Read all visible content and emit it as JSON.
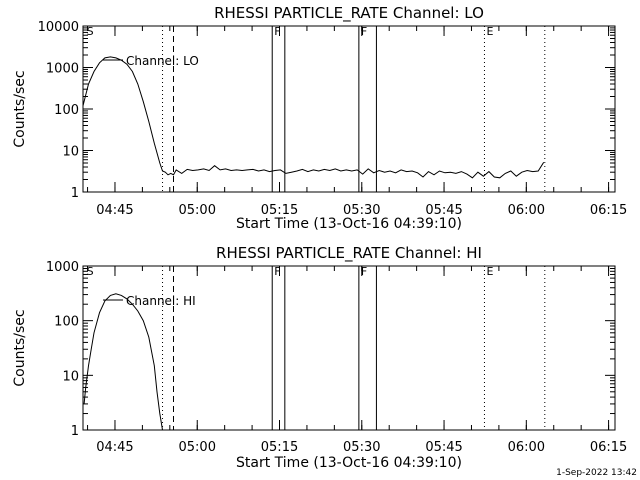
{
  "footer": {
    "timestamp": "1-Sep-2022 13:42"
  },
  "chart_data": [
    {
      "type": "line",
      "title": "RHESSI PARTICLE_RATE Channel: LO",
      "xlabel": "Start Time (13-Oct-16 04:39:10)",
      "ylabel": "Counts/sec",
      "x_unit": "minutes after 04:39:10",
      "xlim": [
        0,
        97
      ],
      "ylim": [
        1,
        10000
      ],
      "yscale": "log",
      "x_tick_labels": [
        "04:45",
        "05:00",
        "05:15",
        "05:30",
        "05:45",
        "06:00",
        "06:15"
      ],
      "y_tick_labels": [
        "1",
        "10",
        "100",
        "1000",
        "10000"
      ],
      "legend_label": "Channel: LO",
      "flags": [
        {
          "label": "S",
          "x": 0.3,
          "style": "none"
        },
        {
          "label": "",
          "x": 14.5,
          "style": "dotted"
        },
        {
          "label": "",
          "x": 16.5,
          "style": "dashed"
        },
        {
          "label": "F",
          "x": 34.5,
          "style": "solid"
        },
        {
          "label": "",
          "x": 36.8,
          "style": "solid"
        },
        {
          "label": "F",
          "x": 50.3,
          "style": "solid"
        },
        {
          "label": "",
          "x": 53.5,
          "style": "solid"
        },
        {
          "label": "E",
          "x": 73.2,
          "style": "dotted"
        },
        {
          "label": "",
          "x": 84.2,
          "style": "dotted"
        }
      ],
      "series": [
        {
          "x": [
            0,
            1,
            2,
            3,
            4,
            5,
            6,
            7,
            8,
            9,
            10,
            11,
            12,
            13,
            14,
            14.5,
            15,
            15.5,
            16,
            16.5,
            17,
            18,
            19,
            20,
            21,
            22,
            23,
            24,
            25,
            26,
            27,
            28,
            29,
            30,
            31,
            32,
            33,
            34,
            35,
            36,
            37,
            38,
            39,
            40,
            41,
            42,
            43,
            44,
            45,
            46,
            47,
            48,
            49,
            50,
            51,
            52,
            53,
            54,
            55,
            56,
            57,
            58,
            59,
            60,
            61,
            62,
            63,
            64,
            65,
            66,
            67,
            68,
            69,
            70,
            71,
            72,
            73,
            74,
            75,
            76,
            77,
            78,
            79,
            80,
            81,
            82,
            83,
            84
          ],
          "y": [
            120,
            400,
            800,
            1300,
            1700,
            1800,
            1700,
            1500,
            1200,
            800,
            400,
            150,
            50,
            15,
            5,
            3.2,
            3.0,
            2.6,
            2.8,
            2.6,
            3.4,
            2.8,
            3.5,
            3.3,
            3.4,
            3.6,
            3.3,
            4.3,
            3.4,
            3.6,
            3.3,
            3.4,
            3.3,
            3.4,
            3.5,
            3.2,
            3.4,
            3.1,
            3.3,
            3.4,
            2.8,
            3.0,
            3.2,
            3.5,
            3.1,
            3.4,
            3.2,
            3.5,
            3.3,
            3.6,
            3.2,
            3.4,
            3.2,
            3.4,
            2.7,
            3.6,
            2.9,
            3.3,
            3.0,
            3.2,
            2.9,
            3.4,
            3.1,
            3.2,
            2.9,
            2.3,
            3.1,
            2.6,
            3.2,
            2.9,
            3.0,
            2.8,
            3.1,
            2.7,
            2.2,
            3.0,
            2.4,
            3.1,
            2.3,
            2.2,
            2.8,
            3.2,
            2.4,
            3.0,
            3.3,
            3.1,
            3.2,
            5.2
          ]
        }
      ]
    },
    {
      "type": "line",
      "title": "RHESSI PARTICLE_RATE Channel: HI",
      "xlabel": "Start Time (13-Oct-16 04:39:10)",
      "ylabel": "Counts/sec",
      "x_unit": "minutes after 04:39:10",
      "xlim": [
        0,
        97
      ],
      "ylim": [
        1,
        1000
      ],
      "yscale": "log",
      "x_tick_labels": [
        "04:45",
        "05:00",
        "05:15",
        "05:30",
        "05:45",
        "06:00",
        "06:15"
      ],
      "y_tick_labels": [
        "1",
        "10",
        "100",
        "1000"
      ],
      "legend_label": "Channel: HI",
      "flags": [
        {
          "label": "S",
          "x": 0.3,
          "style": "none"
        },
        {
          "label": "",
          "x": 14.5,
          "style": "dotted"
        },
        {
          "label": "",
          "x": 16.5,
          "style": "dashed"
        },
        {
          "label": "F",
          "x": 34.5,
          "style": "solid"
        },
        {
          "label": "",
          "x": 36.8,
          "style": "solid"
        },
        {
          "label": "F",
          "x": 50.3,
          "style": "solid"
        },
        {
          "label": "",
          "x": 53.5,
          "style": "solid"
        },
        {
          "label": "E",
          "x": 73.2,
          "style": "dotted"
        },
        {
          "label": "",
          "x": 84.2,
          "style": "dotted"
        }
      ],
      "series": [
        {
          "x": [
            0.2,
            0.5,
            1,
            1.5,
            2,
            3,
            4,
            5,
            6,
            7,
            8,
            9,
            10,
            11,
            12,
            13,
            13.5,
            14,
            14.5
          ],
          "y": [
            3,
            6,
            15,
            30,
            60,
            140,
            230,
            290,
            310,
            290,
            250,
            200,
            150,
            100,
            50,
            15,
            5,
            2,
            1
          ]
        }
      ]
    }
  ]
}
